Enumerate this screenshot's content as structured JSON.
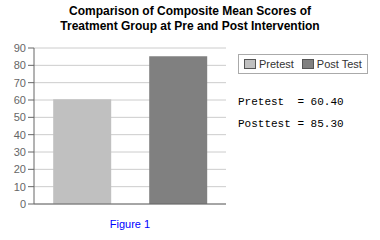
{
  "chart_data": {
    "type": "bar",
    "title": "Comparison of Composite Mean Scores of\nTreatment Group at Pre and Post Intervention",
    "categories": [
      "Pretest",
      "Post Test"
    ],
    "values": [
      60.4,
      85.3
    ],
    "colors": [
      "#c0c0c0",
      "#808080"
    ],
    "xlabel": "Figure 1",
    "ylim": [
      0,
      90
    ],
    "yticks": [
      0,
      10,
      20,
      30,
      40,
      50,
      60,
      70,
      80,
      90
    ],
    "grid": true,
    "legend": "right",
    "tick_labels": "y",
    "annotations": [
      "Pretest  = 60.40",
      "Posttest = 85.30"
    ]
  }
}
